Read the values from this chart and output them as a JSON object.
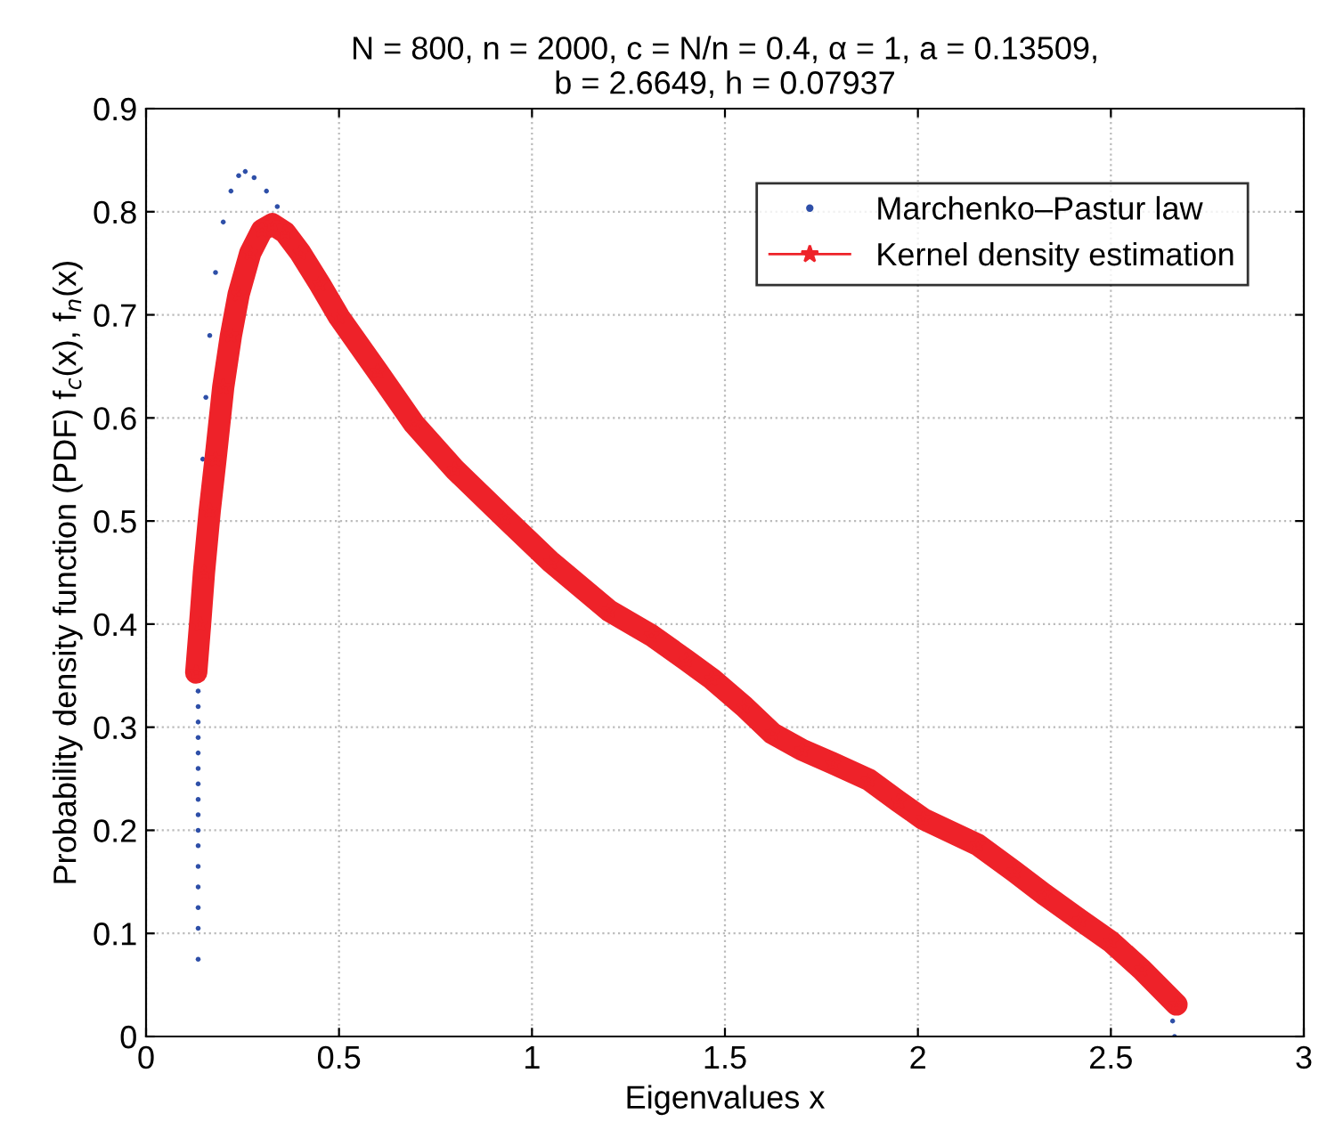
{
  "chart_data": {
    "type": "line",
    "title": "N = 800, n = 2000, c = N/n = 0.4, α = 1, a = 0.13509,\nb = 2.6649, h = 0.07937",
    "xlabel": "Eigenvalues x",
    "ylabel": "Probability density function (PDF) f$_{c}$(x), f$_{n}$(x)",
    "xlim": [
      0,
      3
    ],
    "ylim": [
      0,
      0.9
    ],
    "xticks": [
      0,
      0.5,
      1,
      1.5,
      2,
      2.5,
      3
    ],
    "yticks": [
      0,
      0.1,
      0.2,
      0.3,
      0.4,
      0.5,
      0.6,
      0.7,
      0.8,
      0.9
    ],
    "grid": true,
    "legend": "top right",
    "series": [
      {
        "name": "Marchenko–Pastur law",
        "type": "scatter",
        "marker": "circle",
        "color": "#2e4fa8",
        "x": [
          0.135,
          0.135,
          0.135,
          0.135,
          0.135,
          0.135,
          0.135,
          0.135,
          0.135,
          0.135,
          0.135,
          0.135,
          0.135,
          0.135,
          0.135,
          0.135,
          0.147,
          0.155,
          0.165,
          0.18,
          0.2,
          0.22,
          0.24,
          0.257,
          0.28,
          0.312,
          0.34,
          2.66,
          2.665
        ],
        "values": [
          0.075,
          0.105,
          0.125,
          0.145,
          0.165,
          0.185,
          0.2,
          0.215,
          0.23,
          0.245,
          0.26,
          0.275,
          0.29,
          0.305,
          0.32,
          0.335,
          0.56,
          0.62,
          0.68,
          0.741,
          0.79,
          0.82,
          0.835,
          0.839,
          0.833,
          0.82,
          0.805,
          0.015,
          0.0
        ]
      },
      {
        "name": "Kernel density estimation",
        "marker": "star",
        "line_style": "solid",
        "color": "#ee2229",
        "x": [
          0.13,
          0.14,
          0.15,
          0.165,
          0.18,
          0.2,
          0.22,
          0.24,
          0.27,
          0.3,
          0.327,
          0.36,
          0.4,
          0.45,
          0.5,
          0.6,
          0.695,
          0.8,
          0.93,
          1.05,
          1.2,
          1.31,
          1.4,
          1.466,
          1.55,
          1.623,
          1.7,
          1.78,
          1.873,
          1.95,
          2.014,
          2.155,
          2.25,
          2.327,
          2.42,
          2.5,
          2.58,
          2.67
        ],
        "values": [
          0.353,
          0.4,
          0.45,
          0.51,
          0.56,
          0.63,
          0.68,
          0.72,
          0.76,
          0.782,
          0.788,
          0.78,
          0.76,
          0.73,
          0.698,
          0.645,
          0.594,
          0.55,
          0.503,
          0.46,
          0.413,
          0.389,
          0.365,
          0.347,
          0.32,
          0.294,
          0.278,
          0.265,
          0.249,
          0.228,
          0.211,
          0.186,
          0.16,
          0.138,
          0.113,
          0.092,
          0.065,
          0.031
        ]
      }
    ]
  }
}
